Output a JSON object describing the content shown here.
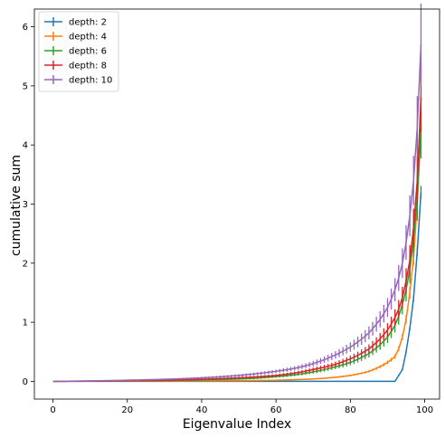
{
  "chart_data": {
    "type": "line",
    "title": "",
    "xlabel": "Eigenvalue Index",
    "ylabel": "cumulative sum",
    "xlim": [
      -5,
      104
    ],
    "ylim": [
      -0.3,
      6.3
    ],
    "xticks": [
      0,
      20,
      40,
      60,
      80,
      100
    ],
    "yticks": [
      0,
      1,
      2,
      3,
      4,
      5,
      6
    ],
    "grid": false,
    "legend_position": "top-left",
    "error_bars": true,
    "series": [
      {
        "name": "depth: 2",
        "color": "#1f77b4",
        "points": [
          [
            0,
            0
          ],
          [
            92,
            0
          ],
          [
            94,
            0.2
          ],
          [
            95,
            0.5
          ],
          [
            96,
            0.9
          ],
          [
            97,
            1.4
          ],
          [
            98,
            2.2
          ],
          [
            99,
            3.2
          ]
        ],
        "error": 0.03
      },
      {
        "name": "depth: 4",
        "color": "#ff7f0e",
        "points": [
          [
            0,
            0
          ],
          [
            50,
            0.01
          ],
          [
            60,
            0.02
          ],
          [
            70,
            0.04
          ],
          [
            80,
            0.1
          ],
          [
            85,
            0.17
          ],
          [
            88,
            0.25
          ],
          [
            90,
            0.32
          ],
          [
            92,
            0.42
          ],
          [
            93,
            0.55
          ],
          [
            94,
            0.75
          ],
          [
            95,
            1.05
          ],
          [
            96,
            1.5
          ],
          [
            97,
            2.1
          ],
          [
            98,
            3.0
          ],
          [
            99,
            4.3
          ]
        ],
        "error": 0.06
      },
      {
        "name": "depth: 6",
        "color": "#2ca02c",
        "points": [
          [
            0,
            0
          ],
          [
            10,
            0.003
          ],
          [
            20,
            0.008
          ],
          [
            30,
            0.015
          ],
          [
            40,
            0.025
          ],
          [
            50,
            0.04
          ],
          [
            60,
            0.08
          ],
          [
            65,
            0.11
          ],
          [
            70,
            0.16
          ],
          [
            75,
            0.23
          ],
          [
            80,
            0.32
          ],
          [
            85,
            0.47
          ],
          [
            88,
            0.62
          ],
          [
            90,
            0.75
          ],
          [
            92,
            0.95
          ],
          [
            93,
            1.1
          ],
          [
            94,
            1.3
          ],
          [
            95,
            1.55
          ],
          [
            96,
            1.9
          ],
          [
            97,
            2.4
          ],
          [
            98,
            3.1
          ],
          [
            99,
            4.3
          ]
        ],
        "error": 0.12
      },
      {
        "name": "depth: 8",
        "color": "#d62728",
        "points": [
          [
            0,
            0
          ],
          [
            10,
            0.004
          ],
          [
            20,
            0.01
          ],
          [
            30,
            0.02
          ],
          [
            40,
            0.035
          ],
          [
            50,
            0.06
          ],
          [
            60,
            0.1
          ],
          [
            65,
            0.14
          ],
          [
            70,
            0.2
          ],
          [
            75,
            0.27
          ],
          [
            80,
            0.38
          ],
          [
            85,
            0.55
          ],
          [
            88,
            0.72
          ],
          [
            90,
            0.87
          ],
          [
            92,
            1.08
          ],
          [
            93,
            1.22
          ],
          [
            94,
            1.42
          ],
          [
            95,
            1.7
          ],
          [
            96,
            2.05
          ],
          [
            97,
            2.6
          ],
          [
            98,
            3.4
          ],
          [
            99,
            4.8
          ]
        ],
        "error": 0.12
      },
      {
        "name": "depth: 10",
        "color": "#9467bd",
        "points": [
          [
            0,
            0
          ],
          [
            10,
            0.008
          ],
          [
            20,
            0.02
          ],
          [
            30,
            0.035
          ],
          [
            40,
            0.06
          ],
          [
            50,
            0.1
          ],
          [
            60,
            0.17
          ],
          [
            65,
            0.22
          ],
          [
            70,
            0.3
          ],
          [
            75,
            0.42
          ],
          [
            80,
            0.58
          ],
          [
            85,
            0.82
          ],
          [
            88,
            1.05
          ],
          [
            90,
            1.25
          ],
          [
            92,
            1.55
          ],
          [
            93,
            1.75
          ],
          [
            94,
            2.0
          ],
          [
            95,
            2.35
          ],
          [
            96,
            2.8
          ],
          [
            97,
            3.4
          ],
          [
            98,
            4.3
          ],
          [
            99,
            5.7
          ]
        ],
        "error": 0.12
      }
    ]
  }
}
